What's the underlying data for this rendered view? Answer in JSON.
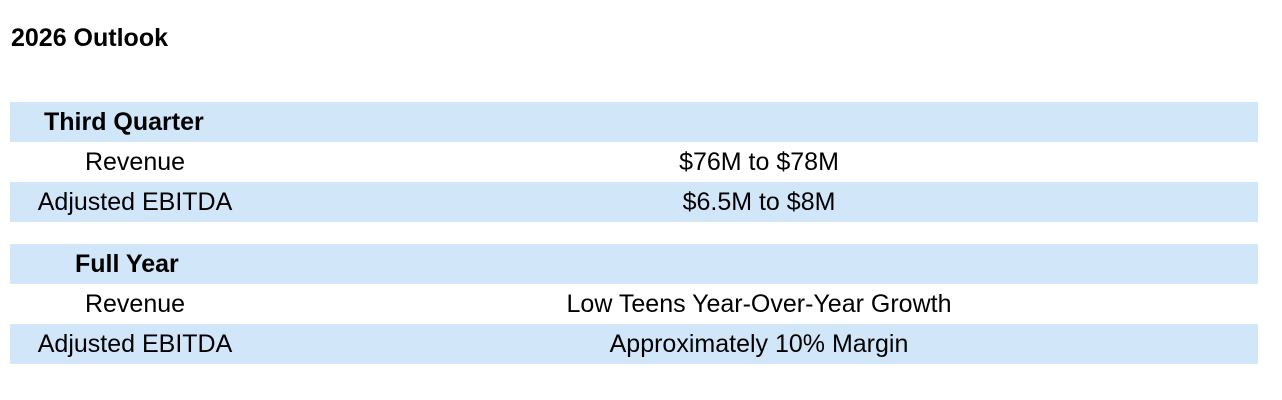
{
  "page_title": "2026 Outlook",
  "colors": {
    "row_shade": "#d2e6f9",
    "background": "#ffffff",
    "text": "#000000"
  },
  "sections": [
    {
      "heading": "Third Quarter",
      "rows": [
        {
          "label": "Revenue",
          "value": "$76M to $78M"
        },
        {
          "label": "Adjusted EBITDA",
          "value": "$6.5M to $8M"
        }
      ]
    },
    {
      "heading": "Full Year",
      "rows": [
        {
          "label": "Revenue",
          "value": "Low Teens Year-Over-Year Growth"
        },
        {
          "label": "Adjusted EBITDA",
          "value": "Approximately 10% Margin"
        }
      ]
    }
  ]
}
